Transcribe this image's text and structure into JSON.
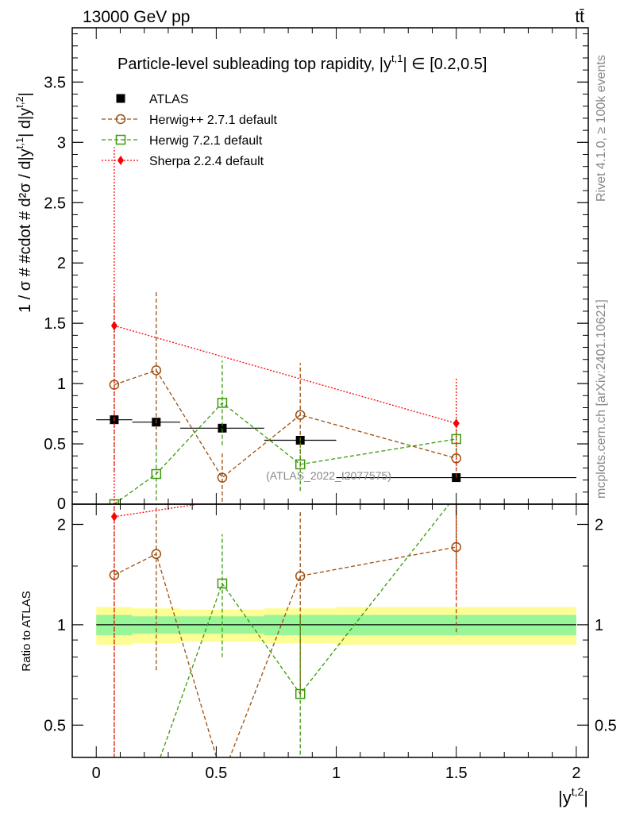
{
  "header": {
    "energy_label": "13000 GeV pp",
    "process_label": "tt̄"
  },
  "side_labels": {
    "rivet": "Rivet 4.1.0, ≥ 100k events",
    "mcplots": "mcplots.cern.ch [arXiv:2401.10621]"
  },
  "watermark": "(ATLAS_2022_I2077575)",
  "chart_data": [
    {
      "type": "line",
      "panel": "main",
      "title": "Particle-level subleading top rapidity, |y^{t,1}| ∈ [0.2,0.5]",
      "title_text": "Particle-level subleading top rapidity, |y",
      "title_sup": "t,1",
      "title_tail": "| ∈ [0.2,0.5]",
      "ylabel": "1 / σ # #cdot # d²σ / d|y^{t,1}| d|y^{t,2}|",
      "ylabel_text": "1 / σ # #cdot # d²σ / d|y",
      "ylabel_sup1": "t,1",
      "ylabel_mid": "| d|y",
      "ylabel_sup2": "t,2",
      "ylabel_tail": "|",
      "xlabel": "|y^{t,2}|",
      "xlim": [
        -0.1,
        2.05
      ],
      "ylim": [
        0,
        3.95
      ],
      "yticks": [
        0.5,
        1,
        1.5,
        2,
        2.5,
        3,
        3.5
      ],
      "ytick_labels": [
        "0.5",
        "1",
        "1.5",
        "2",
        "2.5",
        "3",
        "3.5"
      ],
      "ytick_zero_label": "0",
      "legend_position": "top-left",
      "series": [
        {
          "name": "ATLAS",
          "key": "atlas",
          "color": "#000000",
          "marker": "square-filled",
          "x": [
            0.075,
            0.25,
            0.525,
            0.85,
            1.5
          ],
          "xerr": [
            0.075,
            0.1,
            0.175,
            0.15,
            0.5
          ],
          "y": [
            0.7,
            0.68,
            0.63,
            0.53,
            0.22
          ],
          "yerr": [
            0.02,
            0.02,
            0.02,
            0.02,
            0.01
          ]
        },
        {
          "name": "Herwig++ 2.7.1 default",
          "key": "herwigpp",
          "color": "#9b4f0f",
          "marker": "circle-open",
          "x": [
            0.075,
            0.25,
            0.525,
            0.85,
            1.5
          ],
          "y": [
            0.99,
            1.11,
            0.22,
            0.74,
            0.38
          ],
          "yerr": [
            0.72,
            0.65,
            0.2,
            0.43,
            0.16
          ]
        },
        {
          "name": "Herwig 7.2.1 default",
          "key": "herwig7",
          "color": "#3a9a0a",
          "marker": "square-open",
          "x": [
            0.075,
            0.25,
            0.525,
            0.85,
            1.5
          ],
          "y": [
            0.0,
            0.25,
            0.84,
            0.33,
            0.54
          ],
          "yerr": [
            0.0,
            0.22,
            0.35,
            0.22,
            0.16
          ]
        },
        {
          "name": "Sherpa 2.2.4 default",
          "key": "sherpa",
          "color": "#ff0000",
          "marker": "diamond-filled",
          "x": [
            0.075,
            1.5
          ],
          "y": [
            1.48,
            0.67
          ],
          "yerr": [
            1.48,
            0.38
          ]
        }
      ]
    },
    {
      "type": "line",
      "panel": "ratio",
      "ylabel": "Ratio to ATLAS",
      "xlabel": "|y^{t,2}|",
      "xlabel_text": "|y",
      "xlabel_sup": "t,2",
      "xlabel_tail": "|",
      "xlim": [
        -0.1,
        2.05
      ],
      "ylim_log": [
        0.4,
        2.3
      ],
      "yticks": [
        0.5,
        1,
        2
      ],
      "ytick_labels": [
        "0.5",
        "1",
        "2"
      ],
      "xticks": [
        0,
        0.5,
        1,
        1.5,
        2
      ],
      "xtick_labels": [
        "0",
        "0.5",
        "1",
        "1.5",
        "2"
      ],
      "reference_line": 1,
      "bands": [
        {
          "x0": 0.0,
          "x1": 0.15,
          "stat": 0.07,
          "total": 0.13
        },
        {
          "x0": 0.15,
          "x1": 0.35,
          "stat": 0.06,
          "total": 0.12
        },
        {
          "x0": 0.35,
          "x1": 0.7,
          "stat": 0.06,
          "total": 0.11
        },
        {
          "x0": 0.7,
          "x1": 1.0,
          "stat": 0.07,
          "total": 0.12
        },
        {
          "x0": 1.0,
          "x1": 2.0,
          "stat": 0.07,
          "total": 0.13
        }
      ],
      "band_colors": {
        "stat": "#98f598",
        "total": "#fdfd96"
      },
      "series": [
        {
          "name": "Herwig++ 2.7.1 default",
          "key": "herwigpp",
          "color": "#9b4f0f",
          "marker": "circle-open",
          "x": [
            0.075,
            0.25,
            0.525,
            0.85,
            1.5
          ],
          "y": [
            1.41,
            1.63,
            0.35,
            1.4,
            1.71
          ],
          "ylo": [
            0.38,
            0.73,
            0.0,
            0.62,
            0.95
          ],
          "yhi": [
            2.45,
            2.58,
            0.0,
            2.2,
            2.45
          ]
        },
        {
          "name": "Herwig 7.2.1 default",
          "key": "herwig7",
          "color": "#3a9a0a",
          "marker": "square-open",
          "x": [
            0.075,
            0.25,
            0.525,
            0.85,
            1.5
          ],
          "y": [
            0.0,
            0.37,
            1.33,
            0.62,
            2.45
          ],
          "ylo": [
            0.0,
            0.0,
            0.8,
            0.3,
            1.5
          ],
          "yhi": [
            0.0,
            0.0,
            1.87,
            1.05,
            2.45
          ]
        },
        {
          "name": "Sherpa 2.2.4 default",
          "key": "sherpa",
          "color": "#ff0000",
          "marker": "diamond-filled",
          "x": [
            0.075,
            1.5
          ],
          "y": [
            2.11,
            3.0
          ],
          "ylo": [
            0.38,
            1.2
          ],
          "yhi": [
            2.45,
            2.45
          ]
        }
      ]
    }
  ]
}
